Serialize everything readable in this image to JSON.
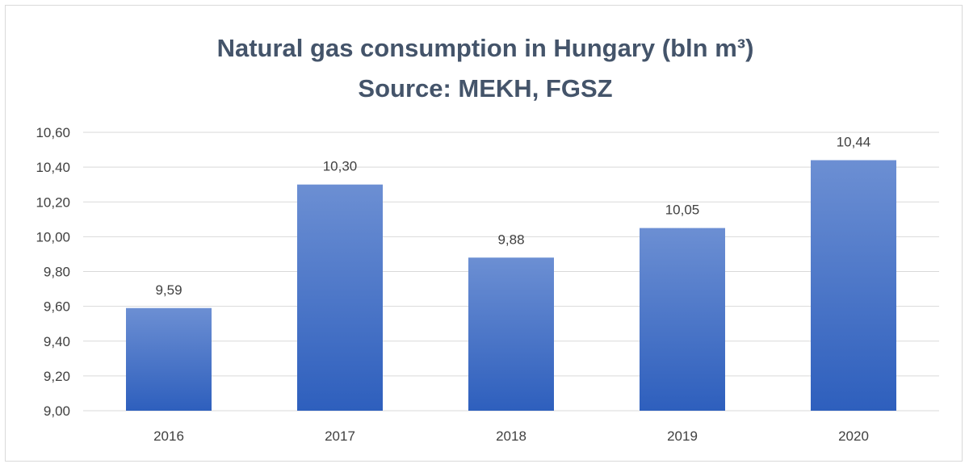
{
  "chart_data": {
    "type": "bar",
    "title": "Natural gas consumption in Hungary (bln m³)",
    "subtitle": "Source: MEKH, FGSZ",
    "categories": [
      "2016",
      "2017",
      "2018",
      "2019",
      "2020"
    ],
    "values": [
      9.59,
      10.3,
      9.88,
      10.05,
      10.44
    ],
    "value_labels": [
      "9,59",
      "10,30",
      "9,88",
      "10,05",
      "10,44"
    ],
    "yticks": [
      9.0,
      9.2,
      9.4,
      9.6,
      9.8,
      10.0,
      10.2,
      10.4,
      10.6
    ],
    "ytick_labels": [
      "9,00",
      "9,20",
      "9,40",
      "9,60",
      "9,80",
      "10,00",
      "10,20",
      "10,40",
      "10,60"
    ],
    "ylim": [
      9.0,
      10.6
    ],
    "xlabel": "",
    "ylabel": "",
    "grid": true,
    "legend": "none",
    "colors": {
      "bar_top": "#6c8fd3",
      "bar_bottom": "#2e5fbd",
      "grid": "#d9d9d9",
      "title": "#44546a",
      "text": "#404040"
    }
  }
}
